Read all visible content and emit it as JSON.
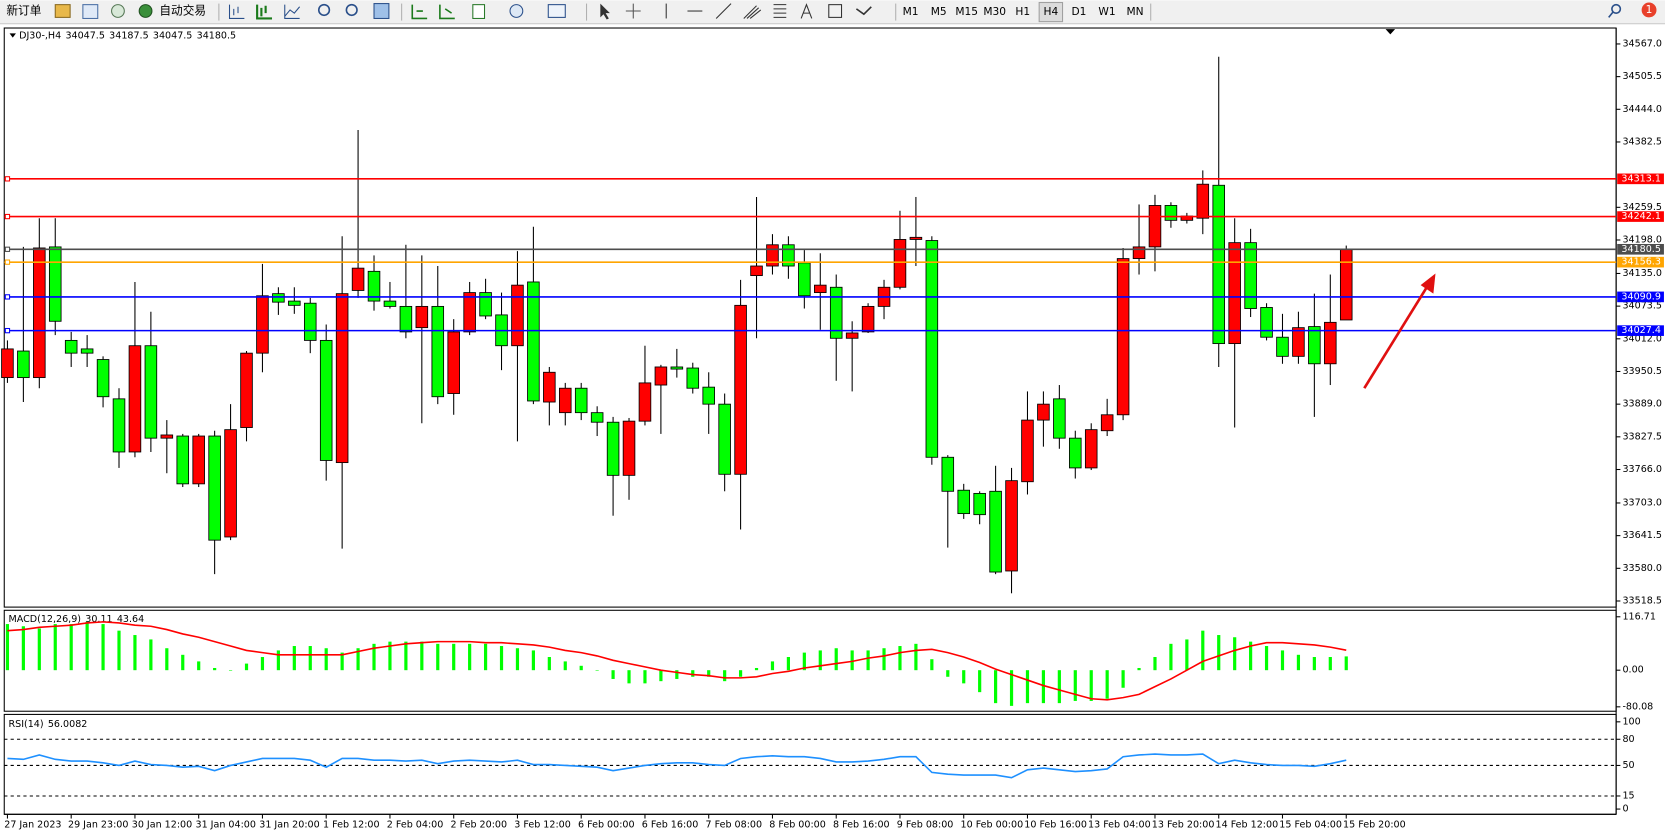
{
  "toolbar": {
    "new_order": "新订单",
    "auto_trading": "自动交易",
    "timeframes": [
      "M1",
      "M5",
      "M15",
      "M30",
      "H1",
      "H4",
      "D1",
      "W1",
      "MN"
    ],
    "selected_timeframe": 5,
    "alerts": 1
  },
  "chart_data": [
    {
      "type": "candlestick",
      "title": "DJ30-,H4",
      "categories": [
        "27 Jan 2023",
        null,
        null,
        null,
        "29 Jan 23:00",
        null,
        null,
        null,
        "30 Jan 12:00",
        null,
        null,
        null,
        "31 Jan 04:00",
        null,
        null,
        null,
        "31 Jan 20:00",
        null,
        null,
        null,
        "1 Feb 12:00",
        null,
        null,
        null,
        "2 Feb 04:00",
        null,
        null,
        null,
        "2 Feb 20:00",
        null,
        null,
        null,
        "3 Feb 12:00",
        null,
        null,
        null,
        "6 Feb 00:00",
        null,
        null,
        null,
        "6 Feb 16:00",
        null,
        null,
        null,
        "7 Feb 08:00",
        null,
        null,
        null,
        "8 Feb 00:00",
        null,
        null,
        null,
        "8 Feb 16:00",
        null,
        null,
        null,
        "9 Feb 08:00",
        null,
        null,
        null,
        "10 Feb 00:00",
        null,
        null,
        null,
        "10 Feb 16:00",
        null,
        null,
        null,
        "13 Feb 04:00",
        null,
        null,
        null,
        "13 Feb 20:00",
        null,
        null,
        null,
        "14 Feb 12:00",
        null,
        null,
        null,
        "15 Feb 04:00",
        null,
        null,
        null,
        "15 Feb 20:00"
      ],
      "open": [
        33939,
        33989,
        33939,
        34185,
        34009,
        33993,
        33973,
        33899,
        33799,
        33999,
        33825,
        33829,
        33739,
        33829,
        33639,
        33845,
        33985,
        34097,
        34083,
        34079,
        34009,
        33779,
        34103,
        34139,
        34083,
        34073,
        34033,
        34073,
        33909,
        34025,
        34099,
        34057,
        33999,
        34119,
        33893,
        33873,
        33919,
        33873,
        33855,
        33755,
        33857,
        33925,
        33959,
        33957,
        33921,
        33889,
        33757,
        34131,
        34149,
        34189,
        34155,
        34099,
        34109,
        34013,
        34025,
        34073,
        34109,
        34199,
        34197,
        33789,
        33727,
        33721,
        33725,
        33575,
        33743,
        33859,
        33899,
        33825,
        33769,
        33839,
        33869,
        34163,
        34185,
        34263,
        34235,
        34239,
        34301,
        34003,
        34193,
        34071,
        34015,
        33979,
        34035,
        33965,
        34047.5
      ],
      "high": [
        34009,
        34185,
        34239,
        34239,
        34025,
        34019,
        33979,
        33919,
        34119,
        34063,
        33859,
        33833,
        33833,
        33839,
        33889,
        33989,
        34153,
        34109,
        34109,
        34089,
        34039,
        34205,
        34405,
        34169,
        34119,
        34189,
        34169,
        34149,
        34049,
        34119,
        34125,
        34099,
        34177,
        34223,
        33959,
        33929,
        33929,
        33885,
        33865,
        33863,
        33999,
        33963,
        33993,
        33967,
        33949,
        33909,
        34123,
        34279,
        34209,
        34205,
        34179,
        34173,
        34133,
        34045,
        34079,
        34123,
        34253,
        34279,
        34205,
        33793,
        33739,
        33725,
        33773,
        33769,
        33913,
        33913,
        33925,
        33839,
        33853,
        33899,
        34183,
        34265,
        34283,
        34269,
        34249,
        34329,
        34543,
        34239,
        34219,
        34079,
        34059,
        34063,
        34097,
        34133,
        34187.5
      ],
      "low": [
        33929,
        33893,
        33919,
        34019,
        33959,
        33959,
        33883,
        33769,
        33789,
        33799,
        33759,
        33733,
        33733,
        33569,
        33633,
        33819,
        33949,
        34057,
        34059,
        33985,
        33745,
        33617,
        34089,
        34065,
        34069,
        34013,
        33853,
        33889,
        33869,
        34019,
        34049,
        33953,
        33819,
        33889,
        33849,
        33849,
        33859,
        33829,
        33679,
        33709,
        33849,
        33833,
        33939,
        33909,
        33833,
        33725,
        33653,
        34013,
        34133,
        34125,
        34069,
        34029,
        33933,
        33913,
        34023,
        34049,
        34105,
        34149,
        33775,
        33619,
        33673,
        33663,
        33569,
        33533,
        33719,
        33809,
        33805,
        33749,
        33765,
        33829,
        33859,
        34133,
        34139,
        34221,
        34229,
        34209,
        33959,
        33845,
        34053,
        34009,
        33965,
        33965,
        33865,
        33925,
        34047.5
      ],
      "close": [
        33993,
        33939,
        34183,
        34045,
        33985,
        33985,
        33903,
        33799,
        33999,
        33825,
        33831,
        33739,
        33829,
        33633,
        33841,
        33985,
        34093,
        34081,
        34075,
        34009,
        33783,
        34097,
        34145,
        34083,
        34073,
        34025,
        34073,
        33903,
        34025,
        34099,
        34055,
        33999,
        34113,
        33895,
        33949,
        33919,
        33873,
        33855,
        33755,
        33857,
        33929,
        33959,
        33955,
        33919,
        33889,
        33757,
        34075,
        34149,
        34189,
        34149,
        34093,
        34113,
        34013,
        34023,
        34073,
        34109,
        34199,
        34203,
        33789,
        33725,
        33683,
        33681,
        33573,
        33745,
        33859,
        33889,
        33825,
        33769,
        33841,
        33869,
        34163,
        34185,
        34263,
        34235,
        34243,
        34303,
        34003,
        34193,
        34069,
        34015,
        33979,
        34033,
        33965,
        34043,
        34180.5
      ],
      "up_color": "#ff0000",
      "down_color": "#00ff00",
      "ylim": [
        33507,
        34597
      ],
      "yticks": [
        {
          "value": 34567,
          "label": "34567.0"
        },
        34505.5,
        {
          "value": 34444,
          "label": "34444.0"
        },
        34382.5,
        34259.5,
        {
          "value": 34198,
          "label": "34198.0"
        },
        {
          "value": 34135,
          "label": "34135.0"
        },
        34073.5,
        {
          "value": 34012,
          "label": "34012.0"
        },
        33950.5,
        {
          "value": 33889,
          "label": "33889.0"
        },
        33827.5,
        {
          "value": 33766,
          "label": "33766.0"
        },
        {
          "value": 33703,
          "label": "33703.0"
        },
        33641.5,
        {
          "value": 33580,
          "label": "33580.0"
        },
        33518.5
      ],
      "levels": [
        {
          "value": 34313.1,
          "color": "#ff0000"
        },
        {
          "value": 34242.1,
          "color": "#ff0000"
        },
        {
          "value": 34180.5,
          "color": "#4d4d4d"
        },
        {
          "value": 34156.3,
          "color": "#ffa500"
        },
        {
          "value": 34090.9,
          "color": "#0000ff"
        },
        {
          "value": 34027.4,
          "color": "#0000ff"
        }
      ]
    },
    {
      "type": "macd",
      "title": "MACD(12,26,9)",
      "series": [
        {
          "style": "histogram",
          "color": "#00ff00",
          "values": [
            100.8,
            96,
            91.2,
            100.8,
            100.8,
            105.6,
            100.8,
            86.4,
            76.8,
            67.2,
            48,
            33.6,
            19.2,
            4.8,
            0,
            14.4,
            28.8,
            43.2,
            52.8,
            52.8,
            48,
            38.4,
            48,
            57.6,
            62.4,
            62.4,
            62.4,
            57.6,
            57.6,
            57.6,
            57.6,
            52.8,
            48,
            43.2,
            28.8,
            19.2,
            9.6,
            0,
            -19.2,
            -28.8,
            -28.8,
            -24,
            -19.2,
            -14.4,
            -14.4,
            -24,
            -14.4,
            4.8,
            19.2,
            28.8,
            38.4,
            43.2,
            48,
            43.2,
            43.2,
            48,
            52.8,
            57.6,
            24,
            -14.4,
            -28.8,
            -48,
            -72,
            -78,
            -72,
            -72,
            -72,
            -67.2,
            -67.2,
            -62.4,
            -38.4,
            4.8,
            28.8,
            57.6,
            67.2,
            86.4,
            76.8,
            72,
            62.4,
            52.8,
            43.2,
            33.6,
            28.8,
            28.8,
            30.11
          ]
        },
        {
          "style": "line",
          "color": "#ff0000",
          "values": [
            86.4,
            88.8,
            93.6,
            96,
            98.4,
            103.2,
            105.6,
            103.2,
            98.4,
            96,
            88.8,
            79.2,
            72,
            62.4,
            52.8,
            43.2,
            38.4,
            33.6,
            33.6,
            33.6,
            33.6,
            33.6,
            40.8,
            48,
            52.8,
            57.6,
            60,
            62.4,
            62.4,
            62.4,
            60,
            60,
            57.6,
            55.2,
            50.4,
            43.2,
            38.4,
            31.2,
            21.6,
            14.4,
            7.2,
            0,
            -4.8,
            -9.6,
            -12,
            -16.8,
            -16.8,
            -14.4,
            -7.2,
            -2.4,
            4.8,
            9.6,
            14.4,
            19.2,
            26.4,
            31.2,
            38.4,
            43.2,
            45.6,
            38.4,
            28.8,
            16.8,
            2.4,
            -9.6,
            -21.6,
            -33.6,
            -43.2,
            -52.8,
            -62.4,
            -64.8,
            -60,
            -52.8,
            -36,
            -19.2,
            0,
            19.2,
            31.2,
            43.2,
            52.8,
            60,
            60,
            57.6,
            55.2,
            50.4,
            43.64
          ]
        }
      ],
      "ylim": [
        -89.7,
        130.9
      ],
      "yticks": [
        116.71,
        {
          "value": 0,
          "label": "0.00"
        },
        -80.08
      ]
    },
    {
      "type": "line",
      "title": "RSI(14)",
      "series": [
        {
          "color": "#1e90ff",
          "values": [
            58,
            57,
            62,
            57,
            55,
            55,
            53,
            50,
            55,
            51,
            50,
            48,
            49,
            44,
            50,
            54,
            58,
            58,
            58,
            56,
            48,
            58,
            58,
            56,
            56,
            55,
            56,
            52,
            55,
            56,
            55,
            54,
            56,
            51,
            51,
            50,
            49,
            48,
            44,
            47,
            50,
            52,
            53,
            53,
            51,
            50,
            58,
            60,
            61,
            60,
            60,
            58,
            54,
            54,
            55,
            57,
            60,
            60,
            42,
            40,
            39,
            39,
            39,
            36,
            45,
            47,
            45,
            43,
            44,
            46,
            60,
            62,
            63,
            62,
            62,
            63,
            52,
            56,
            53,
            51,
            50,
            50,
            49,
            52,
            56.0082
          ]
        }
      ],
      "ylim": [
        -6,
        108.5
      ],
      "yticks": [
        100,
        80,
        50,
        15,
        0
      ],
      "levels": [
        80,
        50,
        15
      ]
    }
  ]
}
